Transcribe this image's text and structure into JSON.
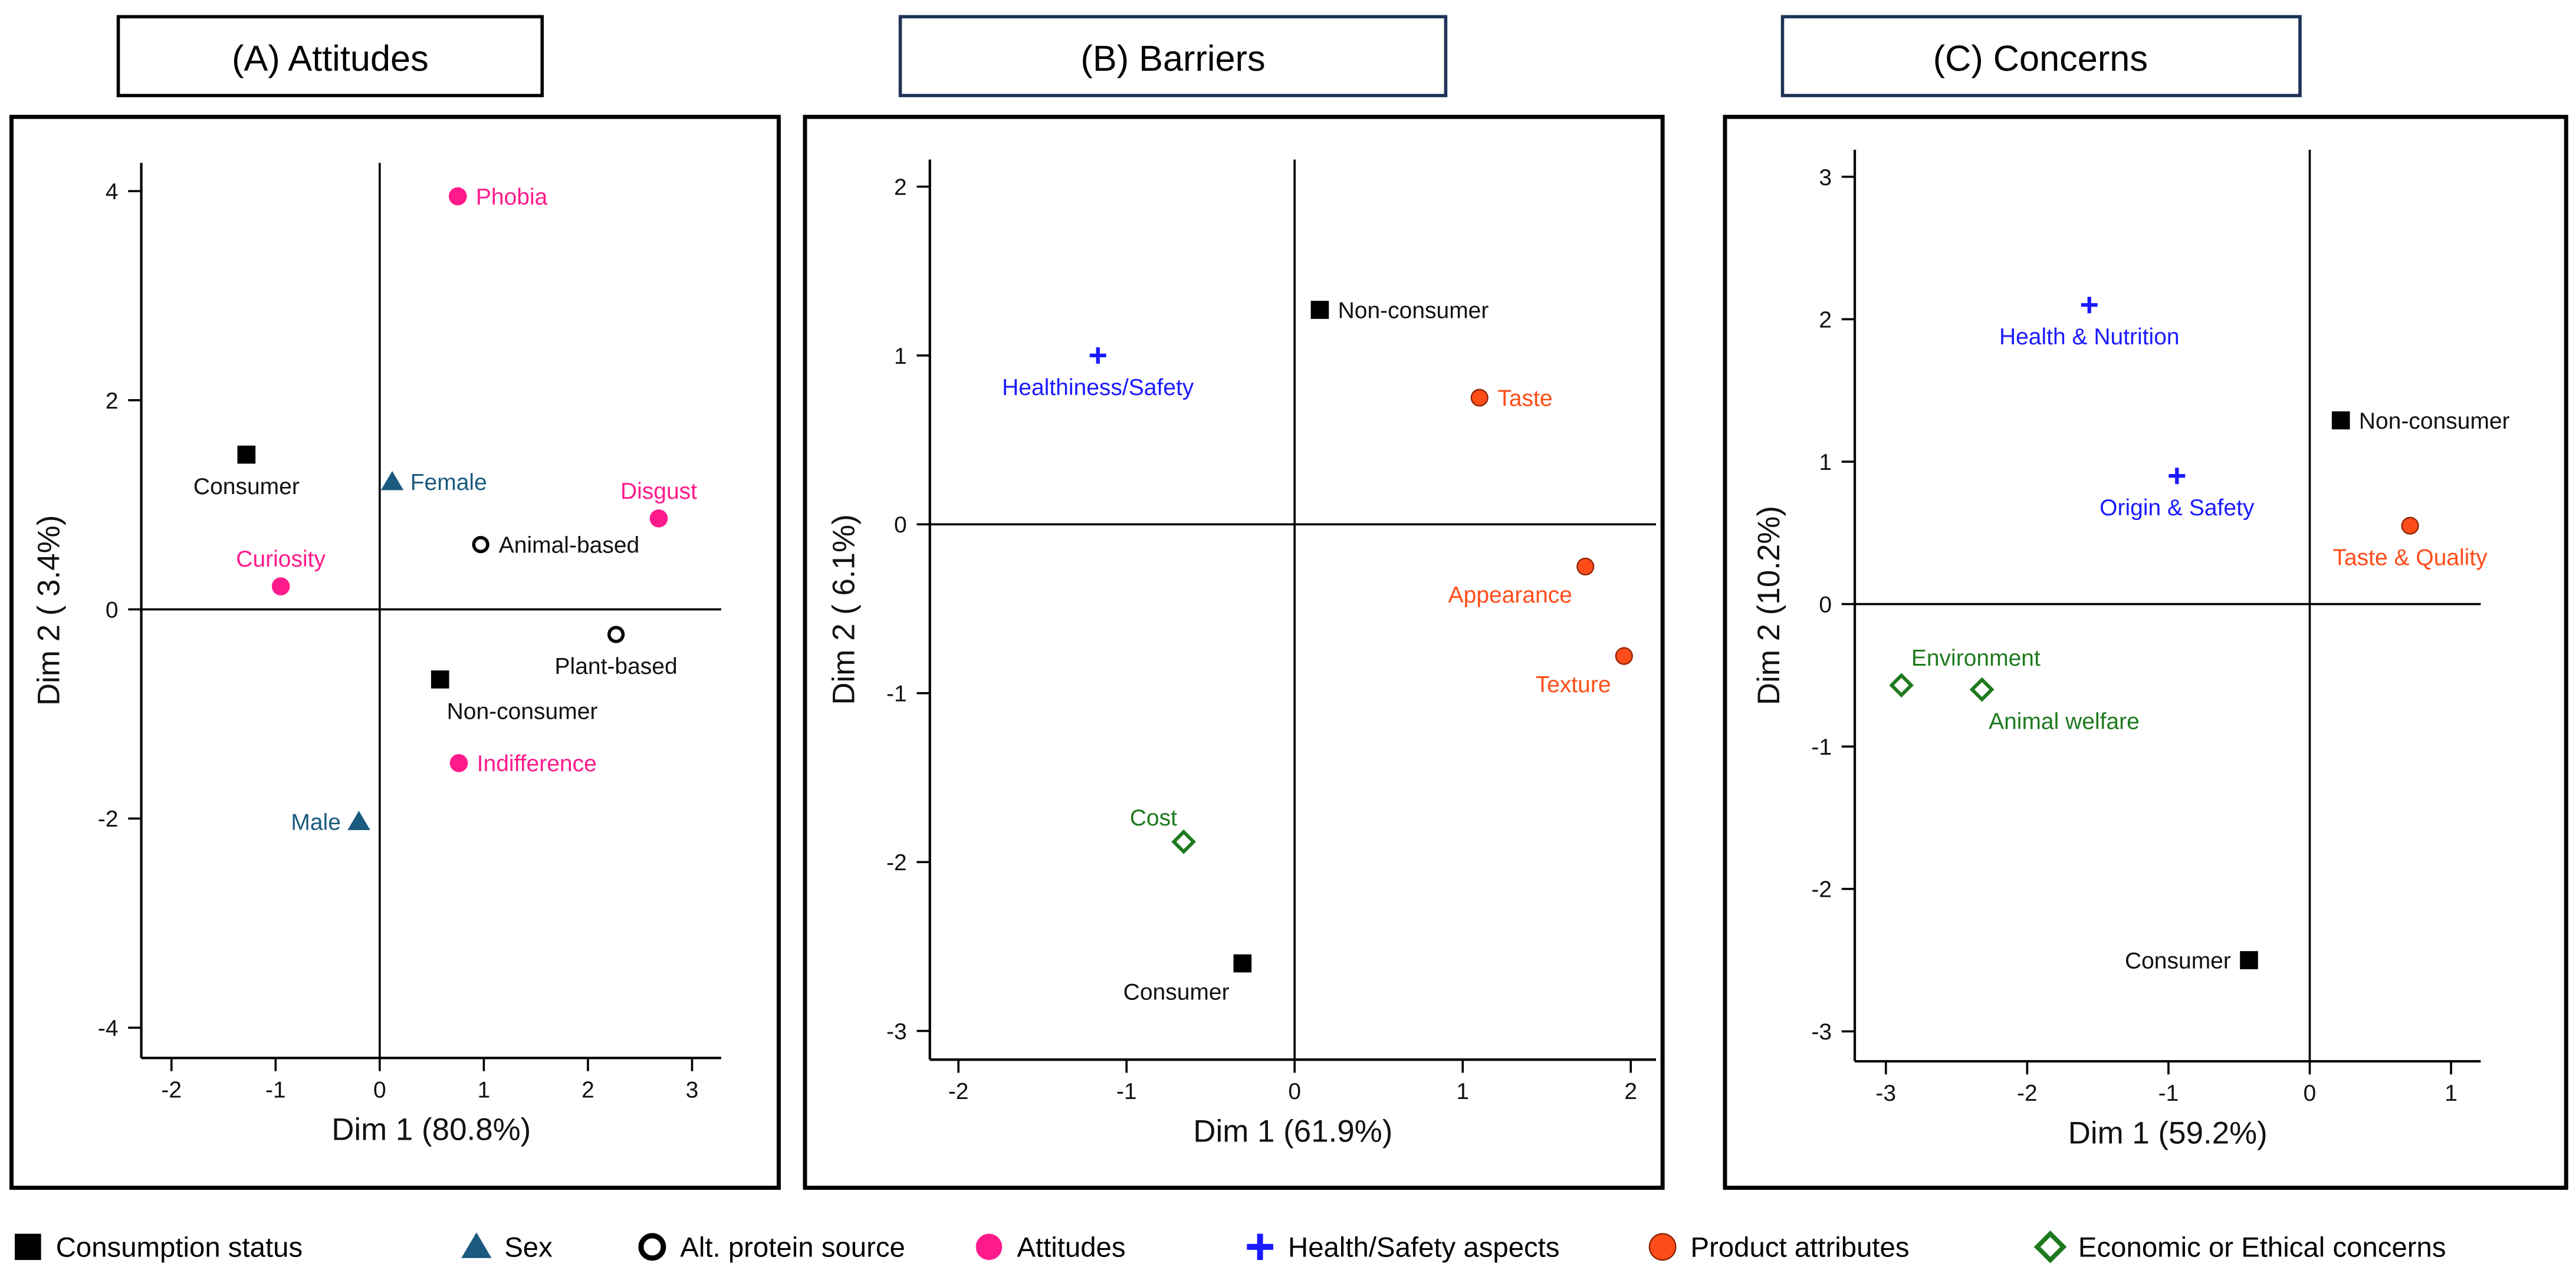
{
  "colors": {
    "consumption": "#000000",
    "sex": "#1b5a7e",
    "alt_protein": "#000000",
    "attitudes": "#ff1a8c",
    "health": "#1a1aff",
    "product": "#ff4d1a",
    "ethical": "#1e7a1e",
    "title_border_a": "#000000",
    "title_border_bc": "#1f3358"
  },
  "legend": [
    {
      "label": "Consumption status",
      "shape": "square",
      "group": "consumption"
    },
    {
      "label": "Sex",
      "shape": "triangle",
      "group": "sex"
    },
    {
      "label": "Alt. protein source",
      "shape": "open-circle",
      "group": "alt_protein"
    },
    {
      "label": "Attitudes",
      "shape": "circle",
      "group": "attitudes"
    },
    {
      "label": "Health/Safety aspects",
      "shape": "plus",
      "group": "health"
    },
    {
      "label": "Product attributes",
      "shape": "orange-circle",
      "group": "product"
    },
    {
      "label": "Economic or Ethical concerns",
      "shape": "diamond",
      "group": "ethical"
    }
  ],
  "chart_data": [
    {
      "type": "scatter",
      "title": "(A) Attitudes",
      "xlabel": "Dim 1 (80.8%)",
      "ylabel": "Dim 2 ( 3.4%)",
      "xlim": [
        -2.29,
        3.28
      ],
      "ylim": [
        -4.29,
        4.27
      ],
      "xticks": [
        -2,
        -1,
        0,
        1,
        2,
        3
      ],
      "yticks": [
        -4,
        -2,
        0,
        2,
        4
      ],
      "points": [
        {
          "label": "Phobia",
          "x": 0.75,
          "y": 3.95,
          "group": "attitudes",
          "label_pos": "right"
        },
        {
          "label": "Consumer",
          "x": -1.28,
          "y": 1.48,
          "group": "consumption",
          "label_pos": "below"
        },
        {
          "label": "Female",
          "x": 0.12,
          "y": 1.22,
          "group": "sex",
          "label_pos": "right"
        },
        {
          "label": "Disgust",
          "x": 2.68,
          "y": 0.87,
          "group": "attitudes",
          "label_pos": "above"
        },
        {
          "label": "Animal-based",
          "x": 0.97,
          "y": 0.62,
          "group": "alt_protein",
          "label_pos": "right"
        },
        {
          "label": "Curiosity",
          "x": -0.95,
          "y": 0.22,
          "group": "attitudes",
          "label_pos": "above"
        },
        {
          "label": "Plant-based",
          "x": 2.27,
          "y": -0.24,
          "group": "alt_protein",
          "label_pos": "below"
        },
        {
          "label": "Non-consumer",
          "x": 0.58,
          "y": -0.67,
          "group": "consumption",
          "label_pos": "below-right"
        },
        {
          "label": "Indifference",
          "x": 0.76,
          "y": -1.47,
          "group": "attitudes",
          "label_pos": "right"
        },
        {
          "label": "Male",
          "x": -0.2,
          "y": -2.03,
          "group": "sex",
          "label_pos": "left"
        }
      ]
    },
    {
      "type": "scatter",
      "title": "(B) Barriers",
      "xlabel": "Dim 1 (61.9%)",
      "ylabel": "Dim 2 ( 6.1%)",
      "xlim": [
        -2.17,
        2.15
      ],
      "ylim": [
        -3.17,
        2.16
      ],
      "xticks": [
        -2,
        -1,
        0,
        1,
        2
      ],
      "yticks": [
        -3,
        -2,
        -1,
        0,
        1,
        2
      ],
      "points": [
        {
          "label": "Healthiness/Safety",
          "x": -1.17,
          "y": 1.0,
          "group": "health",
          "label_pos": "below"
        },
        {
          "label": "Non-consumer",
          "x": 0.15,
          "y": 1.27,
          "group": "consumption",
          "label_pos": "right"
        },
        {
          "label": "Taste",
          "x": 1.1,
          "y": 0.75,
          "group": "product",
          "label_pos": "right"
        },
        {
          "label": "Appearance",
          "x": 1.73,
          "y": -0.25,
          "group": "product",
          "label_pos": "below-left"
        },
        {
          "label": "Texture",
          "x": 1.96,
          "y": -0.78,
          "group": "product",
          "label_pos": "below-left"
        },
        {
          "label": "Cost",
          "x": -0.66,
          "y": -1.88,
          "group": "ethical",
          "label_pos": "above-left"
        },
        {
          "label": "Consumer",
          "x": -0.31,
          "y": -2.6,
          "group": "consumption",
          "label_pos": "below-left"
        }
      ]
    },
    {
      "type": "scatter",
      "title": "(C) Concerns",
      "xlabel": "Dim 1 (59.2%)",
      "ylabel": "Dim 2 (10.2%)",
      "xlim": [
        -3.22,
        1.21
      ],
      "ylim": [
        -3.21,
        3.19
      ],
      "xticks": [
        -3,
        -2,
        -1,
        0,
        1
      ],
      "yticks": [
        -3,
        -2,
        -1,
        0,
        1,
        2,
        3
      ],
      "points": [
        {
          "label": "Health & Nutrition",
          "x": -1.56,
          "y": 2.1,
          "group": "health",
          "label_pos": "below"
        },
        {
          "label": "Origin & Safety",
          "x": -0.94,
          "y": 0.9,
          "group": "health",
          "label_pos": "below"
        },
        {
          "label": "Non-consumer",
          "x": 0.22,
          "y": 1.29,
          "group": "consumption",
          "label_pos": "right"
        },
        {
          "label": "Taste & Quality",
          "x": 0.71,
          "y": 0.55,
          "group": "product",
          "label_pos": "below"
        },
        {
          "label": "Environment",
          "x": -2.89,
          "y": -0.57,
          "group": "ethical",
          "label_pos": "above-right"
        },
        {
          "label": "Animal welfare",
          "x": -2.32,
          "y": -0.6,
          "group": "ethical",
          "label_pos": "below-right"
        },
        {
          "label": "Consumer",
          "x": -0.43,
          "y": -2.5,
          "group": "consumption",
          "label_pos": "left"
        }
      ]
    }
  ]
}
